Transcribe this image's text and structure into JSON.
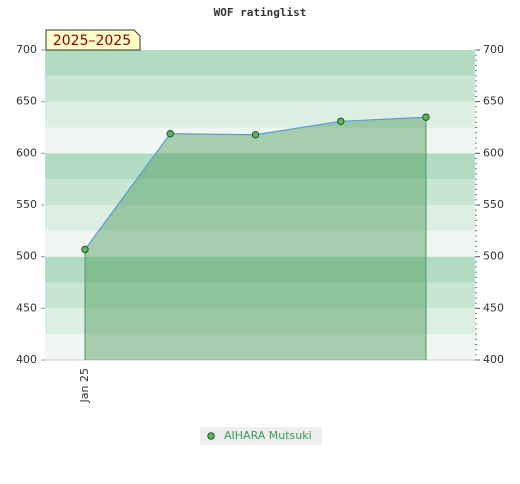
{
  "chart_data": {
    "type": "area",
    "title": "WOF ratinglist",
    "annotation": "2025–2025",
    "categories": [
      "Jan 25",
      null,
      null,
      null,
      null
    ],
    "series": [
      {
        "name": "AIHARA Mutsuki",
        "color": "#4a9a5a",
        "values": [
          507,
          619,
          618,
          631,
          635
        ]
      }
    ],
    "ylim": [
      400,
      700
    ],
    "yticks": [
      400,
      450,
      500,
      550,
      600,
      650,
      700
    ],
    "y2lim": [
      400,
      700
    ],
    "y2ticks": [
      400,
      450,
      500,
      550,
      600,
      650,
      700
    ],
    "legend": "bottom"
  }
}
